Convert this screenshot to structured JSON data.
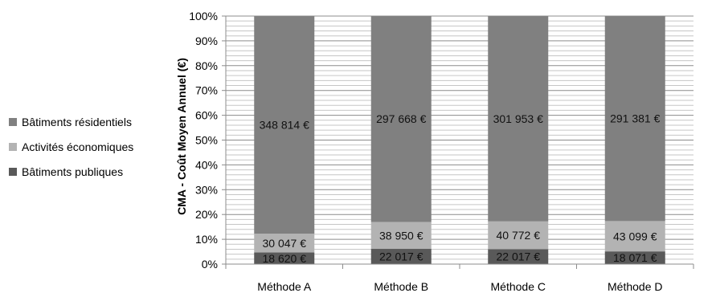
{
  "chart_data": {
    "type": "bar",
    "stacked": "percent",
    "categories": [
      "Méthode A",
      "Méthode B",
      "Méthode C",
      "Méthode D"
    ],
    "series": [
      {
        "name": "Bâtiments publiques",
        "values": [
          18620,
          22017,
          22017,
          18071
        ],
        "labels": [
          "18 620 €",
          "22 017 €",
          "22 017 €",
          "18 071 €"
        ],
        "color": "#595959"
      },
      {
        "name": "Activités économiques",
        "values": [
          30047,
          38950,
          40772,
          43099
        ],
        "labels": [
          "30 047 €",
          "38 950 €",
          "40 772 €",
          "43 099 €"
        ],
        "color": "#b3b3b3"
      },
      {
        "name": "Bâtiments résidentiels",
        "values": [
          348814,
          297668,
          301953,
          291381
        ],
        "labels": [
          "348 814 €",
          "297 668 €",
          "301 953 €",
          "291 381 €"
        ],
        "color": "#808080"
      }
    ],
    "ylabel": "CMA - Coût Moyen Annuel (€)",
    "xlabel": "",
    "ylim": [
      0,
      100
    ],
    "yticks": [
      "0%",
      "10%",
      "20%",
      "30%",
      "40%",
      "50%",
      "60%",
      "70%",
      "80%",
      "90%",
      "100%"
    ],
    "grid": true,
    "legend_position": "left",
    "legend_order": [
      "Bâtiments résidentiels",
      "Activités économiques",
      "Bâtiments publiques"
    ]
  }
}
